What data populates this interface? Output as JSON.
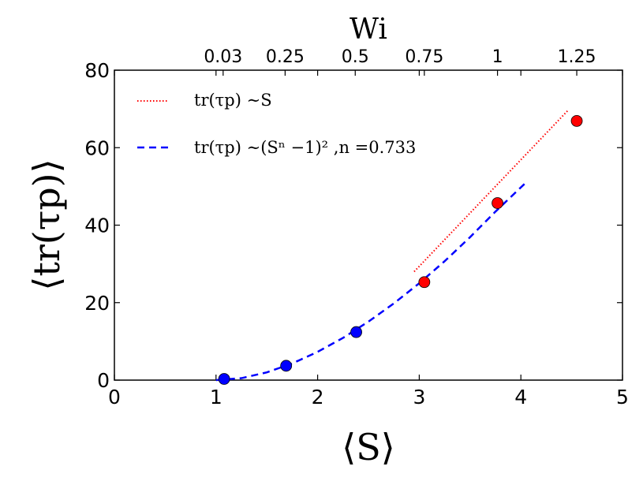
{
  "chart_data": {
    "type": "scatter",
    "xlabel": "⟨S⟩",
    "ylabel": "⟨tr(τp)⟩",
    "top_xlabel": "Wi",
    "xlim": [
      0,
      5
    ],
    "ylim": [
      0,
      80
    ],
    "x_ticks": [
      "0",
      "1",
      "2",
      "3",
      "4",
      "5"
    ],
    "y_ticks": [
      "0",
      "20",
      "40",
      "60",
      "80"
    ],
    "top_ticks": [
      {
        "label": "0.03",
        "x": 1.07
      },
      {
        "label": "0.25",
        "x": 1.68
      },
      {
        "label": "0.5",
        "x": 2.37
      },
      {
        "label": "0.75",
        "x": 3.05
      },
      {
        "label": "1",
        "x": 3.77
      },
      {
        "label": "1.25",
        "x": 4.55
      }
    ],
    "grid": false,
    "legend_position": "top-left",
    "series": [
      {
        "kind": "points",
        "color": "#0000ff",
        "x": [
          1.08,
          1.69,
          2.38
        ],
        "y": [
          0.3,
          3.7,
          12.4
        ]
      },
      {
        "kind": "points",
        "color": "#ff0000",
        "x": [
          3.05,
          3.77,
          4.55
        ],
        "y": [
          25.3,
          45.7,
          66.9
        ]
      },
      {
        "kind": "line",
        "style": "dotted",
        "color": "#ff0000",
        "legend": "tr(τp) ∼S",
        "x": [
          2.95,
          4.47
        ],
        "y": [
          28.0,
          69.8
        ]
      },
      {
        "kind": "line",
        "style": "dashed",
        "color": "#0000ff",
        "legend": "tr(τp) ∼(Sⁿ −1)² ,n =0.733",
        "x": [
          1.0,
          1.25,
          1.5,
          1.75,
          2.0,
          2.25,
          2.5,
          2.75,
          3.0,
          3.25,
          3.5,
          3.75,
          4.05
        ],
        "y": [
          0,
          0.5,
          2.0,
          4.3,
          7.3,
          10.9,
          15.1,
          19.8,
          25.0,
          30.7,
          36.9,
          43.5,
          51.0
        ]
      }
    ]
  }
}
